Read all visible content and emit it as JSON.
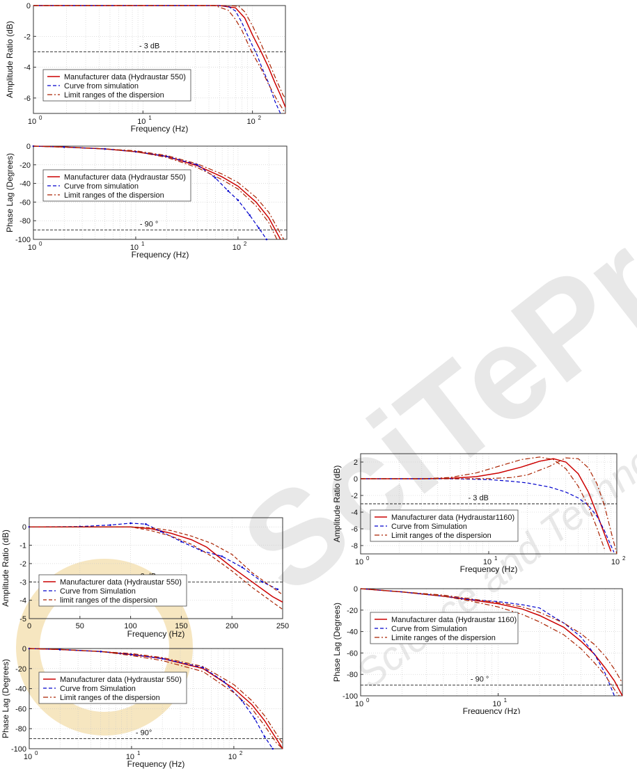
{
  "colors": {
    "manufacturer": "#cc0000",
    "simulation": "#0000cc",
    "limits": "#aa2200",
    "reference": "#222222",
    "grid": "#c8c8c8",
    "watermark": "#e8e8e8",
    "watermark_logo": "#f6e6c0"
  },
  "watermark": {
    "brand": "SciTePress",
    "tagline": "Science and Technology Publications"
  },
  "chart_data": [
    {
      "id": "amp550a",
      "type": "line",
      "xscale": "log",
      "xlim": [
        1,
        200
      ],
      "ylim": [
        -7,
        0
      ],
      "xticks": [
        1,
        10,
        100
      ],
      "xtick_labels": [
        {
          "base": "10",
          "exp": "0"
        },
        {
          "base": "10",
          "exp": "1"
        },
        {
          "base": "10",
          "exp": "2"
        }
      ],
      "yticks": [
        0,
        -2,
        -4,
        -6
      ],
      "ytick_labels": [
        "0",
        "-2",
        "-4",
        "-6"
      ],
      "xlabel": "Frequency (Hz)",
      "ylabel": "Amplitude Ratio (dB)",
      "grid": true,
      "legend_position": "bottom-left",
      "reference": {
        "y": -3,
        "label": "- 3 dB"
      },
      "series": [
        {
          "name": "Manufacturer data (Hydraustar 550)",
          "role": "manufacturer",
          "legend_style": "solid",
          "x": [
            1,
            10,
            50,
            70,
            85,
            100,
            120,
            140,
            160,
            180,
            200
          ],
          "y": [
            0,
            0,
            0,
            -0.15,
            -0.8,
            -1.9,
            -3.0,
            -4.0,
            -5.0,
            -5.8,
            -6.6
          ]
        },
        {
          "name": "Curve from simulation",
          "role": "simulation",
          "legend_style": "dashed",
          "x": [
            1,
            10,
            50,
            60,
            70,
            80,
            90,
            100,
            110,
            120,
            140,
            160,
            180
          ],
          "y": [
            0,
            0,
            0,
            -0.05,
            -0.35,
            -1.1,
            -1.9,
            -2.6,
            -3.2,
            -3.9,
            -5.0,
            -6.2,
            -7.0
          ]
        },
        {
          "name": "Limit ranges of the dispersion",
          "role": "limits",
          "legend_style": "dashdot",
          "x": [
            1,
            10,
            45,
            60,
            70,
            80,
            90,
            100,
            120,
            140,
            170,
            200
          ],
          "y": [
            0,
            0,
            0,
            -0.3,
            -0.9,
            -1.6,
            -2.4,
            -3.1,
            -4.1,
            -5.1,
            -6.2,
            -7.0
          ]
        },
        {
          "name": "",
          "role": "limits",
          "legend_style": "dashdot",
          "x": [
            1,
            10,
            60,
            75,
            85,
            100,
            120,
            140,
            160,
            190,
            200
          ],
          "y": [
            0,
            0,
            0,
            -0.05,
            -0.4,
            -1.3,
            -2.5,
            -3.6,
            -4.6,
            -5.8,
            -6.0
          ]
        }
      ]
    },
    {
      "id": "phase550a",
      "type": "line",
      "xscale": "log",
      "xlim": [
        1,
        300
      ],
      "ylim": [
        -100,
        0
      ],
      "xticks": [
        1,
        10,
        100
      ],
      "xtick_labels": [
        {
          "base": "10",
          "exp": "0"
        },
        {
          "base": "10",
          "exp": "1"
        },
        {
          "base": "10",
          "exp": "2"
        }
      ],
      "yticks": [
        0,
        -20,
        -40,
        -60,
        -80,
        -100
      ],
      "ytick_labels": [
        "0",
        "-20",
        "-40",
        "-60",
        "-80",
        "-100"
      ],
      "xlabel": "Frequency (Hz)",
      "ylabel": "Phase Lag (Degrees)",
      "grid": true,
      "legend_position": "top-left",
      "reference": {
        "y": -90,
        "label": "- 90 °"
      },
      "series": [
        {
          "name": "Manufacturer data (Hydraustar 550)",
          "role": "manufacturer",
          "legend_style": "solid",
          "x": [
            1,
            2,
            5,
            10,
            20,
            40,
            70,
            100,
            150,
            200,
            260
          ],
          "y": [
            0,
            -1,
            -3,
            -6,
            -11,
            -21,
            -33,
            -43,
            -60,
            -77,
            -100
          ]
        },
        {
          "name": "Curve from simulation",
          "role": "simulation",
          "legend_style": "dashed-dots",
          "x": [
            1,
            2,
            5,
            10,
            20,
            40,
            60,
            80,
            100,
            130,
            160,
            190
          ],
          "y": [
            0,
            -1,
            -3,
            -6,
            -11,
            -20,
            -34,
            -48,
            -58,
            -74,
            -88,
            -100
          ]
        },
        {
          "name": "Limit ranges of the dispersion",
          "role": "limits",
          "legend_style": "dashdot",
          "x": [
            1,
            2,
            5,
            10,
            20,
            40,
            70,
            100,
            150,
            200,
            240
          ],
          "y": [
            0,
            -1,
            -3,
            -6,
            -12,
            -23,
            -36,
            -46,
            -64,
            -82,
            -100
          ]
        },
        {
          "name": "",
          "role": "limits",
          "legend_style": "dashdot",
          "x": [
            1,
            2,
            5,
            10,
            20,
            40,
            70,
            100,
            150,
            200,
            280
          ],
          "y": [
            0,
            -1,
            -3,
            -5,
            -10,
            -19,
            -30,
            -39,
            -55,
            -71,
            -100
          ]
        }
      ]
    },
    {
      "id": "amp550b",
      "type": "line",
      "xscale": "linear",
      "xlim": [
        0,
        250
      ],
      "ylim": [
        -5,
        0.5
      ],
      "xticks": [
        0,
        50,
        100,
        150,
        200,
        250
      ],
      "xtick_labels": [
        "0",
        "50",
        "100",
        "150",
        "200",
        "250"
      ],
      "yticks": [
        0,
        -1,
        -2,
        -3,
        -4,
        -5
      ],
      "ytick_labels": [
        "0",
        "-1",
        "-2",
        "-3",
        "-4",
        "-5"
      ],
      "xlabel": "Frequency (Hz)",
      "ylabel": "Amplitude Ratio (dB)",
      "grid": true,
      "legend_position": "bottom-left",
      "reference": {
        "y": -3,
        "label": "- 3 dB"
      },
      "series": [
        {
          "name": "Manufacturer data (Hydraustar 550)",
          "role": "manufacturer",
          "legend_style": "solid",
          "x": [
            0,
            100,
            120,
            140,
            160,
            175,
            185,
            200,
            220,
            240,
            250
          ],
          "y": [
            0,
            0,
            -0.1,
            -0.35,
            -0.7,
            -1.1,
            -1.55,
            -2.2,
            -3.0,
            -3.8,
            -4.1
          ]
        },
        {
          "name": "Curve from Simulation",
          "role": "simulation",
          "legend_style": "dashed-dots",
          "x": [
            0,
            50,
            80,
            100,
            115,
            130,
            150,
            170,
            190,
            210,
            230,
            245
          ],
          "y": [
            0,
            0.02,
            0.1,
            0.2,
            0.15,
            -0.25,
            -0.8,
            -1.3,
            -1.6,
            -2.2,
            -3.0,
            -3.4
          ]
        },
        {
          "name": "limit ranges of the dispersion",
          "role": "limits",
          "legend_style": "dashed",
          "x": [
            0,
            100,
            120,
            140,
            160,
            180,
            200,
            220,
            240,
            250
          ],
          "y": [
            0,
            0,
            -0.2,
            -0.5,
            -0.95,
            -1.6,
            -2.4,
            -3.3,
            -4.1,
            -4.5
          ]
        },
        {
          "name": "",
          "role": "limits",
          "legend_style": "dashed",
          "x": [
            0,
            100,
            120,
            140,
            160,
            180,
            200,
            220,
            240,
            250
          ],
          "y": [
            0,
            0,
            -0.05,
            -0.2,
            -0.5,
            -0.9,
            -1.5,
            -2.5,
            -3.3,
            -3.7
          ]
        }
      ]
    },
    {
      "id": "phase550b",
      "type": "line",
      "xscale": "log",
      "xlim": [
        1,
        300
      ],
      "ylim": [
        -100,
        0
      ],
      "xticks": [
        1,
        10,
        100
      ],
      "xtick_labels": [
        {
          "base": "10",
          "exp": "0"
        },
        {
          "base": "10",
          "exp": "1"
        },
        {
          "base": "10",
          "exp": "2"
        }
      ],
      "yticks": [
        0,
        -20,
        -40,
        -60,
        -80,
        -100
      ],
      "ytick_labels": [
        "0",
        "-20",
        "-40",
        "-60",
        "-80",
        "-100"
      ],
      "xlabel": "Frequency (Hz)",
      "ylabel": "Phase Lag (Degrees)",
      "grid": true,
      "legend_position": "top-left",
      "reference": {
        "y": -90,
        "label": "- 90°"
      },
      "series": [
        {
          "name": "Manufacturer data (Hydraustar 550)",
          "role": "manufacturer",
          "legend_style": "solid",
          "x": [
            1,
            2,
            5,
            10,
            20,
            50,
            100,
            150,
            200,
            260,
            300
          ],
          "y": [
            0,
            -1,
            -3,
            -6,
            -10,
            -20,
            -40,
            -56,
            -72,
            -90,
            -100
          ]
        },
        {
          "name": "Curve from Simulation",
          "role": "simulation",
          "legend_style": "dashed-dots",
          "x": [
            1,
            2,
            5,
            10,
            20,
            50,
            80,
            120,
            160,
            200,
            240
          ],
          "y": [
            0,
            -1,
            -3,
            -6,
            -10,
            -19,
            -33,
            -52,
            -70,
            -88,
            -100
          ]
        },
        {
          "name": "Limit ranges of the dispersion",
          "role": "limits",
          "legend_style": "dashdot",
          "x": [
            1,
            2,
            5,
            10,
            20,
            50,
            100,
            150,
            200,
            260,
            300
          ],
          "y": [
            0,
            -1,
            -3,
            -7,
            -12,
            -23,
            -44,
            -60,
            -77,
            -94,
            -100
          ]
        },
        {
          "name": "",
          "role": "limits",
          "legend_style": "dashdot",
          "x": [
            1,
            2,
            5,
            10,
            20,
            50,
            100,
            150,
            200,
            260,
            300
          ],
          "y": [
            0,
            -1,
            -3,
            -5,
            -9,
            -18,
            -36,
            -52,
            -67,
            -85,
            -95
          ]
        }
      ]
    },
    {
      "id": "amp1160",
      "type": "line",
      "xscale": "log",
      "xlim": [
        1,
        100
      ],
      "ylim": [
        -9,
        3
      ],
      "xticks": [
        1,
        10,
        100
      ],
      "xtick_labels": [
        {
          "base": "10",
          "exp": "0"
        },
        {
          "base": "10",
          "exp": "1"
        },
        {
          "base": "10",
          "exp": "2"
        }
      ],
      "yticks": [
        2,
        0,
        -2,
        -4,
        -6,
        -8
      ],
      "ytick_labels": [
        "2",
        "0",
        "-2",
        "-4",
        "-6",
        "-8"
      ],
      "xlabel": "Frequency (Hz)",
      "ylabel": "Amplitude Ratio (dB)",
      "grid": true,
      "legend_position": "bottom-left",
      "reference": {
        "y": -3,
        "label": "- 3 dB"
      },
      "series": [
        {
          "name": "Manufacturer data (Hydraustar1160)",
          "role": "manufacturer",
          "legend_style": "solid",
          "x": [
            1,
            3,
            5,
            8,
            12,
            18,
            25,
            32,
            40,
            50,
            60,
            70,
            80,
            90
          ],
          "y": [
            0,
            0,
            0.05,
            0.25,
            0.7,
            1.4,
            2.1,
            2.4,
            2.0,
            0.6,
            -1.6,
            -4.2,
            -6.6,
            -8.7
          ]
        },
        {
          "name": "Curve from Simulation",
          "role": "simulation",
          "legend_style": "dashed",
          "x": [
            1,
            5,
            10,
            15,
            20,
            30,
            40,
            50,
            60,
            70,
            80,
            90,
            95
          ],
          "y": [
            0,
            0,
            -0.1,
            -0.3,
            -0.5,
            -1.0,
            -1.6,
            -2.3,
            -3.2,
            -4.5,
            -6.2,
            -8.0,
            -8.8
          ]
        },
        {
          "name": "Limit ranges of the dispersion",
          "role": "limits",
          "legend_style": "dashdot",
          "x": [
            1,
            3,
            5,
            8,
            12,
            18,
            25,
            32,
            40,
            50,
            60,
            70,
            80
          ],
          "y": [
            0,
            0,
            0.15,
            0.7,
            1.5,
            2.3,
            2.6,
            2.3,
            1.2,
            -0.9,
            -3.3,
            -5.9,
            -8.4
          ]
        },
        {
          "name": "",
          "role": "limits",
          "legend_style": "dashdot",
          "x": [
            1,
            5,
            10,
            15,
            20,
            30,
            40,
            50,
            60,
            70,
            80,
            90,
            100
          ],
          "y": [
            0,
            0,
            0.02,
            0.15,
            0.45,
            1.5,
            2.5,
            2.4,
            1.3,
            -0.6,
            -3.2,
            -6.3,
            -9.0
          ]
        }
      ]
    },
    {
      "id": "phase1160",
      "type": "line",
      "xscale": "log",
      "xlim": [
        1,
        80
      ],
      "ylim": [
        -100,
        0
      ],
      "xticks": [
        1,
        10
      ],
      "xtick_labels": [
        {
          "base": "10",
          "exp": "0"
        },
        {
          "base": "10",
          "exp": "1"
        }
      ],
      "yticks": [
        0,
        -20,
        -40,
        -60,
        -80,
        -100
      ],
      "ytick_labels": [
        "0",
        "-20",
        "-40",
        "-60",
        "-80",
        "-100"
      ],
      "xlabel": "Frequency (Hz)",
      "ylabel": "Phase Lag (Degrees)",
      "grid": true,
      "legend_position": "top-left",
      "reference": {
        "y": -90,
        "label": "- 90 °"
      },
      "series": [
        {
          "name": "Manufacturer data (Hydraustar 1160)",
          "role": "manufacturer",
          "legend_style": "solid",
          "x": [
            1,
            2,
            4,
            6,
            10,
            15,
            20,
            30,
            40,
            50,
            60,
            70,
            80
          ],
          "y": [
            0,
            -3,
            -7,
            -10,
            -14,
            -19,
            -25,
            -36,
            -49,
            -61,
            -74,
            -86,
            -100
          ]
        },
        {
          "name": "Curve from Simulation",
          "role": "simulation",
          "legend_style": "dashed",
          "x": [
            1,
            2,
            4,
            6,
            10,
            15,
            20,
            25,
            30,
            40,
            50,
            60,
            70
          ],
          "y": [
            0,
            -3,
            -7,
            -10,
            -12,
            -15,
            -18,
            -26,
            -32,
            -45,
            -61,
            -79,
            -100
          ]
        },
        {
          "name": "Limite ranges of the dispersion",
          "role": "limits",
          "legend_style": "dashdot",
          "x": [
            1,
            2,
            4,
            6,
            10,
            15,
            20,
            30,
            40,
            50,
            60,
            70,
            76
          ],
          "y": [
            0,
            -3,
            -7,
            -11,
            -17,
            -24,
            -31,
            -43,
            -56,
            -69,
            -81,
            -94,
            -100
          ]
        },
        {
          "name": "",
          "role": "limits",
          "legend_style": "dashdot",
          "x": [
            1,
            2,
            4,
            6,
            10,
            15,
            20,
            30,
            40,
            50,
            60,
            70,
            80
          ],
          "y": [
            0,
            -3,
            -6,
            -9,
            -13,
            -17,
            -22,
            -32,
            -42,
            -52,
            -63,
            -75,
            -88
          ]
        }
      ]
    }
  ]
}
